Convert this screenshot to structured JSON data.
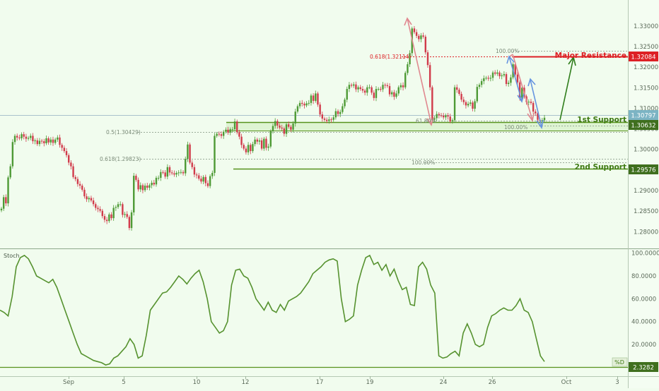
{
  "chart_data": [
    {
      "type": "candlestick",
      "x_ticks": [
        "Sep",
        "5",
        "10",
        "12",
        "17",
        "19",
        "24",
        "26",
        "Oct",
        "3"
      ],
      "y_ticks": [
        "1.33000",
        "1.32500",
        "1.32000",
        "1.31500",
        "1.31000",
        "1.30500",
        "1.30000",
        "1.29500",
        "1.29000",
        "1.28500",
        "1.28000"
      ],
      "ylim": [
        1.278,
        1.3322
      ],
      "current_price": "1.30797",
      "series": [
        {
          "values": [
            1.2856,
            1.2884,
            1.2869,
            1.2932,
            1.2959,
            1.3018,
            1.3033,
            1.3029,
            1.3027,
            1.3037,
            1.3031,
            1.3026,
            1.3028,
            1.3033,
            1.302,
            1.3022,
            1.3013,
            1.3021,
            1.302,
            1.3015,
            1.3027,
            1.3017,
            1.3024,
            1.3016,
            1.3024,
            1.3029,
            1.3011,
            1.3004,
            1.2996,
            1.2986,
            1.2968,
            1.2959,
            1.2933,
            1.2928,
            1.2916,
            1.2912,
            1.2902,
            1.2886,
            1.2879,
            1.2882,
            1.2876,
            1.2867,
            1.2858,
            1.2855,
            1.2851,
            1.2838,
            1.2829,
            1.2826,
            1.2842,
            1.2833,
            1.2858,
            1.286,
            1.2867,
            1.2867,
            1.2841,
            1.2843,
            1.2836,
            1.2809,
            1.2847,
            1.2936,
            1.2926,
            1.2903,
            1.2913,
            1.2901,
            1.2912,
            1.2907,
            1.2913,
            1.2919,
            1.2915,
            1.2931,
            1.2931,
            1.2945,
            1.2944,
            1.2934,
            1.2957,
            1.2944,
            1.2942,
            1.2939,
            1.2943,
            1.2944,
            1.2945,
            1.2942,
            1.2977,
            1.3012,
            1.2968,
            1.2957,
            1.2939,
            1.2937,
            1.2929,
            1.2922,
            1.2933,
            1.2918,
            1.2911,
            1.2935,
            1.2943,
            1.3033,
            1.3038,
            1.3037,
            1.3033,
            1.3043,
            1.3048,
            1.3041,
            1.3049,
            1.3049,
            1.3068,
            1.3042,
            1.3031,
            1.3011,
            1.3002,
            1.2993,
            1.3011,
            1.2996,
            1.3013,
            1.3024,
            1.3019,
            1.3022,
            1.3002,
            1.3026,
            1.3004,
            1.3007,
            1.3044,
            1.3057,
            1.3069,
            1.3058,
            1.3053,
            1.3051,
            1.3038,
            1.3061,
            1.3055,
            1.3048,
            1.3063,
            1.3092,
            1.3105,
            1.3113,
            1.3111,
            1.3107,
            1.3112,
            1.3113,
            1.3131,
            1.3118,
            1.3136,
            1.3109,
            1.3085,
            1.3075,
            1.3072,
            1.3069,
            1.3073,
            1.3072,
            1.3078,
            1.3093,
            1.3086,
            1.3091,
            1.3105,
            1.3121,
            1.3147,
            1.3157,
            1.3155,
            1.3158,
            1.3146,
            1.3151,
            1.3147,
            1.3143,
            1.3138,
            1.3151,
            1.3151,
            1.3138,
            1.3125,
            1.3147,
            1.3147,
            1.3146,
            1.3157,
            1.3156,
            1.3154,
            1.3134,
            1.3139,
            1.3128,
            1.3136,
            1.3151,
            1.3156,
            1.3151,
            1.3186,
            1.3207,
            1.3234,
            1.3294,
            1.3285,
            1.3276,
            1.3268,
            1.3277,
            1.3274,
            1.3236,
            1.3205,
            1.3151,
            1.3072,
            1.3076,
            1.3086,
            1.3083,
            1.3082,
            1.3078,
            1.3083,
            1.308,
            1.3068,
            1.3071,
            1.3151,
            1.3145,
            1.3135,
            1.3121,
            1.3115,
            1.3107,
            1.3111,
            1.3114,
            1.3099,
            1.3117,
            1.3152,
            1.3157,
            1.3166,
            1.3173,
            1.3174,
            1.3172,
            1.3174,
            1.3187,
            1.3184,
            1.3187,
            1.3178,
            1.318,
            1.3183,
            1.3159,
            1.3162,
            1.3175,
            1.3207,
            1.3182,
            1.3163,
            1.3126,
            1.315,
            1.3129,
            1.3115,
            1.3116,
            1.3113,
            1.3092,
            1.3088,
            1.3072,
            1.3069,
            1.3071,
            1.3077
          ]
        }
      ]
    },
    {
      "type": "line",
      "title": "Stoch",
      "series_label": "%D",
      "current_value": "2.3282",
      "y_ticks": [
        "100.0000",
        "80.0000",
        "60.0000",
        "40.0000",
        "20.0000"
      ],
      "ylim": [
        -1,
        101
      ],
      "series": [
        {
          "values": [
            50,
            48,
            45,
            62,
            88,
            96,
            98,
            95,
            88,
            80,
            78,
            76,
            74,
            77,
            70,
            60,
            50,
            40,
            30,
            20,
            12,
            10,
            8,
            6,
            5,
            4,
            2,
            3,
            8,
            10,
            14,
            18,
            25,
            20,
            8,
            10,
            28,
            50,
            55,
            60,
            65,
            66,
            70,
            75,
            80,
            77,
            73,
            78,
            82,
            85,
            75,
            60,
            40,
            35,
            30,
            32,
            40,
            72,
            85,
            86,
            80,
            78,
            70,
            60,
            55,
            50,
            57,
            50,
            48,
            55,
            50,
            58,
            60,
            62,
            65,
            70,
            75,
            82,
            85,
            88,
            92,
            94,
            95,
            93,
            60,
            40,
            42,
            45,
            72,
            85,
            96,
            98,
            90,
            92,
            85,
            90,
            80,
            86,
            76,
            68,
            70,
            55,
            54,
            88,
            92,
            86,
            72,
            65,
            10,
            8,
            9,
            12,
            14,
            10,
            30,
            38,
            30,
            20,
            18,
            20,
            35,
            45,
            47,
            50,
            52,
            50,
            50,
            54,
            60,
            50,
            48,
            40,
            25,
            10,
            5
          ]
        }
      ]
    }
  ],
  "annotations": {
    "major_resistance": {
      "label": "Major Resistance",
      "price": "1.32084"
    },
    "support1": {
      "label": "1st Support",
      "price": "1.30632"
    },
    "support2": {
      "label": "2nd Support",
      "price": "1.29576"
    },
    "fib_labels": [
      "0.618(1.32114)",
      "100.00%",
      "61.80%",
      "100.00%",
      "0.5(1.30429)",
      "0.618(1.29823)",
      "100.00%"
    ]
  },
  "colors": {
    "background": "#f1fcee",
    "up": "#4e9a35",
    "down": "#d13b4b",
    "resistance": "#dd2025",
    "support": "#57921c",
    "stoch_line": "#56922f",
    "blue_arrow": "#6795e0",
    "pink_arrow": "#e0888f"
  }
}
